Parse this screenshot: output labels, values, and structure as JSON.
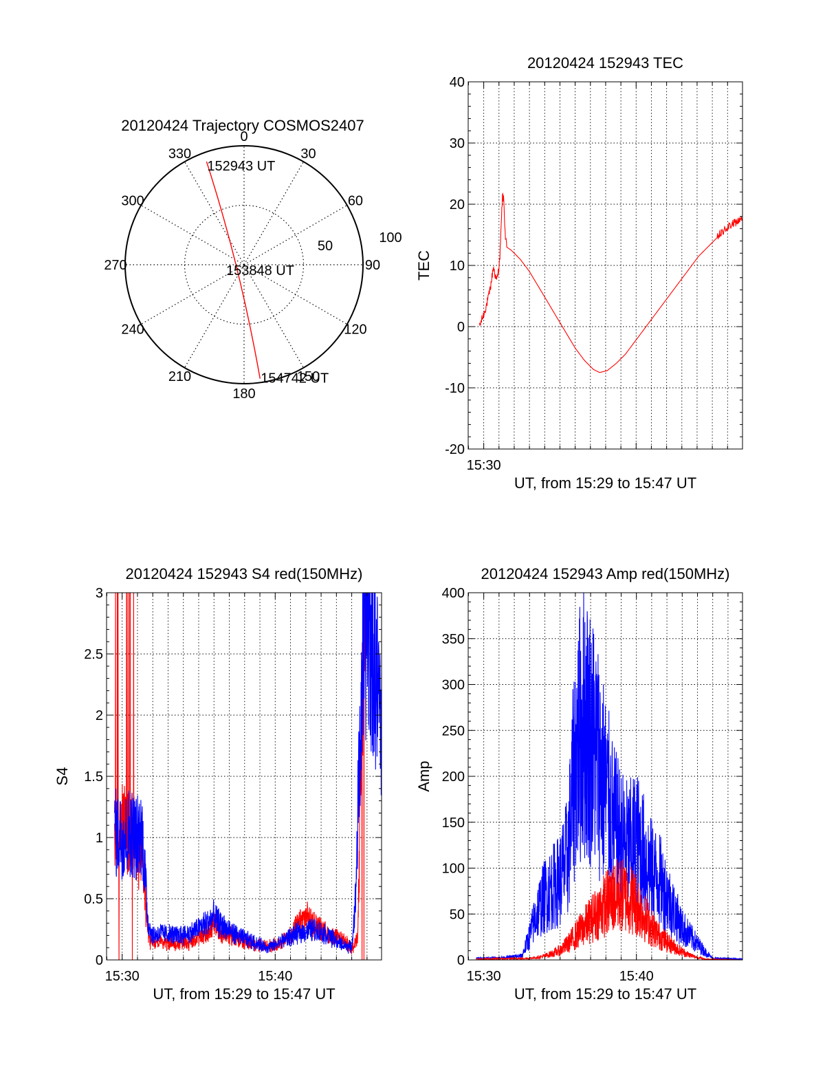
{
  "colors": {
    "red": "#ff0000",
    "blue": "#0000ff",
    "axis": "#000000"
  },
  "chart_data": [
    {
      "type": "scatter",
      "subtype": "polar-trajectory",
      "title": "20120424 Trajectory COSMOS2407",
      "azimuth_labels": [
        "0",
        "30",
        "60",
        "90",
        "120",
        "150",
        "180",
        "210",
        "240",
        "270",
        "300",
        "330"
      ],
      "radial_labels": [
        "50",
        "100"
      ],
      "track_color": "red",
      "track": [
        {
          "az": 340,
          "zenith": 83,
          "label": "152943 UT"
        },
        {
          "az": 0,
          "zenith": 0,
          "label": "153848 UT"
        },
        {
          "az": 172,
          "zenith": 87,
          "label": "154742 UT"
        }
      ]
    },
    {
      "type": "line",
      "title": "20120424 152943 TEC",
      "xlabel": "UT, from 15:29 to 15:47 UT",
      "ylabel": "TEC",
      "xlim": [
        15.483,
        15.783
      ],
      "ylim": [
        -20,
        40
      ],
      "yticks": [
        "-20",
        "-10",
        "0",
        "10",
        "20",
        "30",
        "40"
      ],
      "xticks": [
        {
          "value": 15.5,
          "label": "15:30"
        }
      ],
      "grid": true,
      "series": [
        {
          "color": "red",
          "points": [
            [
              15.4954,
              0
            ],
            [
              15.4975,
              1
            ],
            [
              15.5,
              2
            ],
            [
              15.503,
              3.5
            ],
            [
              15.5055,
              5
            ],
            [
              15.508,
              7
            ],
            [
              15.5105,
              9.8
            ],
            [
              15.512,
              8.8
            ],
            [
              15.514,
              7.5
            ],
            [
              15.5155,
              8.5
            ],
            [
              15.5175,
              11
            ],
            [
              15.519,
              16
            ],
            [
              15.5205,
              21.5
            ],
            [
              15.522,
              20.5
            ],
            [
              15.5235,
              15
            ],
            [
              15.525,
              13
            ],
            [
              15.53,
              12.5
            ],
            [
              15.54,
              11
            ],
            [
              15.55,
              9
            ],
            [
              15.56,
              6.5
            ],
            [
              15.57,
              4
            ],
            [
              15.58,
              1.5
            ],
            [
              15.59,
              -1
            ],
            [
              15.6,
              -3.5
            ],
            [
              15.61,
              -5.5
            ],
            [
              15.62,
              -7
            ],
            [
              15.6267,
              -7.5
            ],
            [
              15.635,
              -7.2
            ],
            [
              15.645,
              -6
            ],
            [
              15.655,
              -4.5
            ],
            [
              15.665,
              -2.5
            ],
            [
              15.675,
              -0.5
            ],
            [
              15.685,
              1.5
            ],
            [
              15.695,
              3.5
            ],
            [
              15.705,
              5.5
            ],
            [
              15.715,
              7.5
            ],
            [
              15.725,
              9.5
            ],
            [
              15.735,
              11.5
            ],
            [
              15.745,
              13
            ],
            [
              15.755,
              14.5
            ],
            [
              15.765,
              16
            ],
            [
              15.775,
              17
            ],
            [
              15.7825,
              17.5
            ]
          ]
        }
      ]
    },
    {
      "type": "line",
      "title": "20120424 152943 S4 red(150MHz)",
      "xlabel": "UT, from 15:29 to 15:47 UT",
      "ylabel": "S4",
      "xlim": [
        15.483,
        15.7825
      ],
      "ylim": [
        0,
        3
      ],
      "yticks": [
        "0",
        "0.5",
        "1",
        "1.5",
        "2",
        "2.5",
        "3"
      ],
      "xticks": [
        {
          "value": 15.5,
          "label": "15:30"
        },
        {
          "value": 15.6667,
          "label": "15:40"
        }
      ],
      "grid": true,
      "series": [
        {
          "color": "red",
          "points": [
            [
              15.4917,
              1.0
            ],
            [
              15.4967,
              1.05
            ],
            [
              15.5017,
              1.1
            ],
            [
              15.5067,
              1.05
            ],
            [
              15.5117,
              1.0
            ],
            [
              15.5167,
              0.9
            ],
            [
              15.5217,
              0.8
            ],
            [
              15.525,
              0.55
            ],
            [
              15.5267,
              0.3
            ],
            [
              15.53,
              0.15
            ],
            [
              15.5417,
              0.15
            ],
            [
              15.5583,
              0.13
            ],
            [
              15.575,
              0.15
            ],
            [
              15.5883,
              0.2
            ],
            [
              15.6,
              0.28
            ],
            [
              15.6083,
              0.22
            ],
            [
              15.625,
              0.17
            ],
            [
              15.6417,
              0.13
            ],
            [
              15.6583,
              0.11
            ],
            [
              15.6667,
              0.12
            ],
            [
              15.675,
              0.15
            ],
            [
              15.6833,
              0.2
            ],
            [
              15.6917,
              0.28
            ],
            [
              15.7,
              0.35
            ],
            [
              15.7083,
              0.3
            ],
            [
              15.7167,
              0.25
            ],
            [
              15.725,
              0.2
            ],
            [
              15.7333,
              0.18
            ],
            [
              15.7417,
              0.15
            ],
            [
              15.7467,
              0.12
            ],
            [
              15.7525,
              0.1
            ],
            [
              15.7567,
              0.2
            ],
            [
              15.76,
              1.5
            ],
            [
              15.7625,
              2.5
            ],
            [
              15.765,
              3.0
            ]
          ]
        },
        {
          "color": "blue",
          "points": [
            [
              15.4917,
              1.05
            ],
            [
              15.5,
              1.0
            ],
            [
              15.5083,
              1.05
            ],
            [
              15.5167,
              1.0
            ],
            [
              15.5217,
              1.05
            ],
            [
              15.525,
              0.7
            ],
            [
              15.5283,
              0.3
            ],
            [
              15.5333,
              0.2
            ],
            [
              15.5417,
              0.22
            ],
            [
              15.5583,
              0.2
            ],
            [
              15.575,
              0.22
            ],
            [
              15.5917,
              0.3
            ],
            [
              15.6,
              0.35
            ],
            [
              15.6083,
              0.28
            ],
            [
              15.625,
              0.2
            ],
            [
              15.6417,
              0.15
            ],
            [
              15.6583,
              0.1
            ],
            [
              15.6667,
              0.12
            ],
            [
              15.675,
              0.16
            ],
            [
              15.6917,
              0.22
            ],
            [
              15.7083,
              0.25
            ],
            [
              15.725,
              0.2
            ],
            [
              15.7333,
              0.15
            ],
            [
              15.7417,
              0.12
            ],
            [
              15.75,
              0.1
            ],
            [
              15.7542,
              0.5
            ],
            [
              15.7567,
              1.2
            ],
            [
              15.7625,
              2.5
            ],
            [
              15.7667,
              2.8
            ],
            [
              15.775,
              2.4
            ],
            [
              15.7825,
              2.0
            ]
          ]
        }
      ]
    },
    {
      "type": "line",
      "title": "20120424 152943 Amp red(150MHz)",
      "xlabel": "UT, from 15:29 to 15:47 UT",
      "ylabel": "Amp",
      "xlim": [
        15.483,
        15.7825
      ],
      "ylim": [
        0,
        400
      ],
      "yticks": [
        "0",
        "50",
        "100",
        "150",
        "200",
        "250",
        "300",
        "350",
        "400"
      ],
      "xticks": [
        {
          "value": 15.5,
          "label": "15:30"
        },
        {
          "value": 15.6667,
          "label": "15:40"
        }
      ],
      "grid": true,
      "series": [
        {
          "color": "blue",
          "points": [
            [
              15.4917,
              2
            ],
            [
              15.525,
              3
            ],
            [
              15.5417,
              5
            ],
            [
              15.55,
              30
            ],
            [
              15.5583,
              60
            ],
            [
              15.5667,
              80
            ],
            [
              15.575,
              90
            ],
            [
              15.5833,
              100
            ],
            [
              15.5917,
              130
            ],
            [
              15.6,
              250
            ],
            [
              15.6083,
              300
            ],
            [
              15.6167,
              280
            ],
            [
              15.625,
              250
            ],
            [
              15.6333,
              210
            ],
            [
              15.6417,
              170
            ],
            [
              15.65,
              150
            ],
            [
              15.6583,
              140
            ],
            [
              15.6667,
              150
            ],
            [
              15.675,
              130
            ],
            [
              15.6833,
              110
            ],
            [
              15.6917,
              100
            ],
            [
              15.7,
              80
            ],
            [
              15.7083,
              60
            ],
            [
              15.7167,
              40
            ],
            [
              15.725,
              30
            ],
            [
              15.7333,
              20
            ],
            [
              15.7417,
              10
            ],
            [
              15.75,
              2
            ],
            [
              15.7825,
              1
            ]
          ]
        },
        {
          "color": "red",
          "points": [
            [
              15.4917,
              1
            ],
            [
              15.55,
              2
            ],
            [
              15.5583,
              3
            ],
            [
              15.5667,
              5
            ],
            [
              15.575,
              8
            ],
            [
              15.5833,
              12
            ],
            [
              15.5917,
              20
            ],
            [
              15.6,
              30
            ],
            [
              15.6083,
              40
            ],
            [
              15.6167,
              50
            ],
            [
              15.625,
              60
            ],
            [
              15.6333,
              70
            ],
            [
              15.6417,
              78
            ],
            [
              15.65,
              80
            ],
            [
              15.6583,
              78
            ],
            [
              15.6667,
              70
            ],
            [
              15.675,
              55
            ],
            [
              15.6833,
              40
            ],
            [
              15.6917,
              30
            ],
            [
              15.7,
              22
            ],
            [
              15.7083,
              16
            ],
            [
              15.7167,
              10
            ],
            [
              15.725,
              6
            ],
            [
              15.7333,
              3
            ],
            [
              15.7417,
              1
            ],
            [
              15.7825,
              0
            ]
          ]
        }
      ]
    }
  ]
}
